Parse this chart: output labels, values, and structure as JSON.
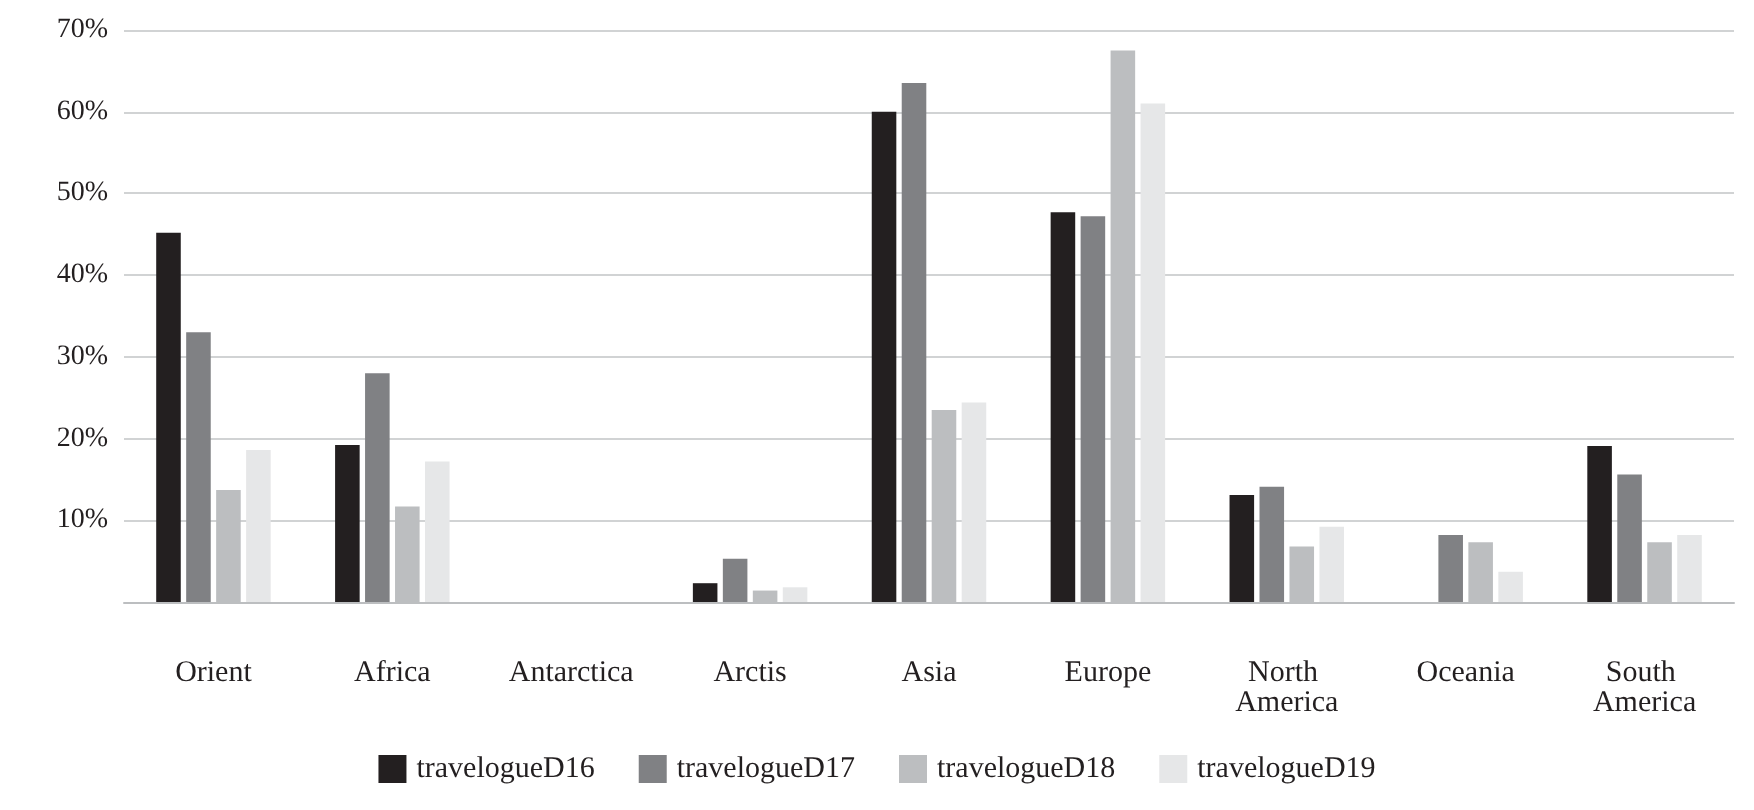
{
  "chart_data": {
    "type": "bar",
    "categories": [
      "Orient",
      "Africa",
      "Antarctica",
      "Arctis",
      "Asia",
      "Europe",
      "North America",
      "Oceania",
      "South America"
    ],
    "series": [
      {
        "name": "travelogueD16",
        "color": "#231f20",
        "values": [
          45.2,
          19.2,
          0,
          2.3,
          60.0,
          47.7,
          13.1,
          0,
          19.1
        ]
      },
      {
        "name": "travelogueD17",
        "color": "#808184",
        "values": [
          33.0,
          28.0,
          0,
          5.3,
          63.5,
          47.2,
          14.1,
          8.2,
          15.6
        ]
      },
      {
        "name": "travelogueD18",
        "color": "#bcbec0",
        "values": [
          13.7,
          11.7,
          0,
          1.4,
          23.5,
          67.5,
          6.8,
          7.3,
          7.3
        ]
      },
      {
        "name": "travelogueD19",
        "color": "#e6e7e8",
        "values": [
          18.6,
          17.2,
          0,
          1.8,
          24.4,
          61.0,
          9.2,
          3.7,
          8.2
        ]
      }
    ],
    "ylim": [
      0,
      70
    ],
    "yticks": [
      {
        "value": 0,
        "label": null
      },
      {
        "value": 10,
        "label": "10%"
      },
      {
        "value": 20,
        "label": "20%"
      },
      {
        "value": 30,
        "label": "30%"
      },
      {
        "value": 40,
        "label": "40%"
      },
      {
        "value": 50,
        "label": "50%"
      },
      {
        "value": 60,
        "label": "60%"
      },
      {
        "value": 70,
        "label": "70%"
      }
    ],
    "grid": "y",
    "legend": "bottom"
  }
}
